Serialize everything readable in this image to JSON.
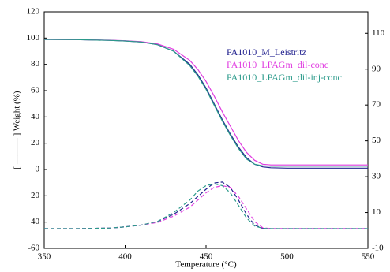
{
  "chart_data": {
    "type": "line",
    "xlabel": "Temperature (°C)",
    "ylabel": "[ ——— ] Weight (%)",
    "x": [
      350,
      370,
      390,
      400,
      410,
      420,
      430,
      440,
      445,
      450,
      455,
      460,
      465,
      470,
      475,
      480,
      485,
      490,
      500,
      520,
      550
    ],
    "xlim": [
      350,
      550
    ],
    "xticks": [
      350,
      400,
      450,
      500,
      550
    ],
    "ylim": [
      -60,
      120
    ],
    "yticks": [
      -60,
      -40,
      -20,
      0,
      20,
      40,
      60,
      80,
      100,
      120
    ],
    "y2lim": [
      -10,
      122
    ],
    "y2ticks": [
      -10,
      10,
      30,
      50,
      70,
      90,
      110
    ],
    "series": [
      {
        "name": "PA1010_M_Leistritz",
        "color": "#22228f",
        "values": [
          99,
          98.8,
          98.3,
          97.8,
          97,
          95,
          90,
          80,
          72,
          62,
          50,
          38,
          27,
          17,
          9,
          4,
          2,
          1.3,
          1,
          1,
          1
        ]
      },
      {
        "name": "PA1010_LPAGm_dil-conc",
        "color": "#e03ce0",
        "values": [
          99,
          98.8,
          98.4,
          98,
          97.3,
          95.6,
          91.5,
          83,
          76,
          67,
          56,
          44,
          33,
          22,
          13,
          7,
          4,
          3.5,
          3.5,
          3.5,
          3.5
        ]
      },
      {
        "name": "PA1010_LPAGm_dil-inj-conc",
        "color": "#2a9a8a",
        "values": [
          99,
          98.8,
          98.3,
          97.8,
          97,
          95,
          90,
          79,
          71,
          61,
          49,
          37,
          26,
          16,
          8,
          4,
          2.8,
          2.5,
          2.5,
          2.5,
          2.5
        ]
      },
      {
        "color": "#22228f",
        "axis": "y2",
        "dashed": true,
        "values": [
          1,
          1,
          1.3,
          2,
          3,
          5,
          9,
          15,
          19,
          23,
          26.5,
          27,
          24,
          17,
          9,
          3,
          1.2,
          1,
          1,
          1,
          1
        ]
      },
      {
        "color": "#e03ce0",
        "axis": "y2",
        "dashed": true,
        "values": [
          1,
          1,
          1.3,
          2,
          3,
          4.5,
          8,
          13,
          17,
          21,
          24,
          25,
          24,
          19,
          12,
          5,
          1.5,
          1,
          1,
          1,
          1
        ]
      },
      {
        "color": "#2a9a8a",
        "axis": "y2",
        "dashed": true,
        "values": [
          1,
          1,
          1.3,
          2,
          3,
          5,
          10,
          17,
          22,
          25,
          26,
          25,
          21,
          14,
          7,
          2.5,
          1.2,
          1,
          1,
          1,
          1
        ]
      }
    ]
  }
}
